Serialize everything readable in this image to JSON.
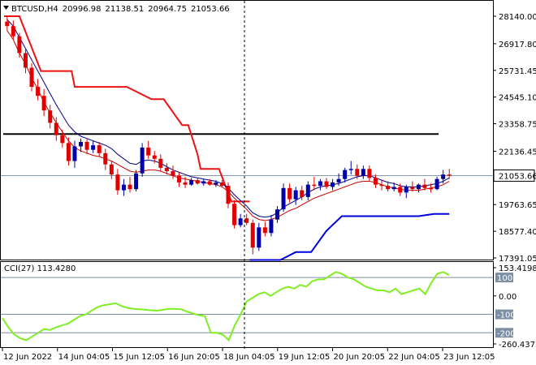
{
  "chart_data": [
    {
      "type": "candlestick",
      "symbol": "BTCUSD,H4",
      "ohlc_header": [
        "20996.98",
        "21138.51",
        "20964.75",
        "21053.66"
      ],
      "price_axis_labels": [
        "28140.00",
        "26917.80",
        "25731.45",
        "24545.10",
        "23358.75",
        "22136.45",
        "21053.66",
        "19763.65",
        "18577.40",
        "17391.05"
      ],
      "ylim": [
        17391.05,
        28140.0
      ],
      "current_price": 21053.66,
      "horizontal_line": 22900,
      "x_ticks": [
        "12 Jun 2022",
        "14 Jun 04:05",
        "15 Jun 12:05",
        "16 Jun 20:05",
        "18 Jun 04:05",
        "19 Jun 12:05",
        "20 Jun 20:05",
        "22 Jun 04:05",
        "23 Jun 12:05"
      ],
      "colors": {
        "bull": "#0000aa",
        "bear": "#e00000",
        "fast_ma": "#00008b",
        "slow_ma": "#cc0000",
        "trailing_stop_red": "#ee1111",
        "trailing_stop_blue": "#0000dd",
        "level_line": "#000000"
      },
      "candles": [
        [
          27900,
          28150,
          27500,
          27700
        ],
        [
          27700,
          27950,
          27100,
          27250
        ],
        [
          27250,
          27400,
          26300,
          26500
        ],
        [
          26500,
          26700,
          25600,
          25850
        ],
        [
          25850,
          26050,
          24800,
          25000
        ],
        [
          25000,
          25350,
          24400,
          24600
        ],
        [
          24600,
          24900,
          23700,
          23950
        ],
        [
          23950,
          24200,
          23150,
          23400
        ],
        [
          23400,
          23650,
          22600,
          22850
        ],
        [
          22850,
          23100,
          22300,
          22500
        ],
        [
          22500,
          22750,
          21500,
          21700
        ],
        [
          21700,
          22600,
          21400,
          22350
        ],
        [
          22350,
          22700,
          22100,
          22550
        ],
        [
          22550,
          22700,
          22000,
          22200
        ],
        [
          22200,
          22600,
          22050,
          22400
        ],
        [
          22400,
          22550,
          21900,
          22050
        ],
        [
          22050,
          22250,
          21300,
          21550
        ],
        [
          21550,
          21700,
          20900,
          21100
        ],
        [
          21100,
          21350,
          20200,
          20400
        ],
        [
          20400,
          20900,
          20150,
          20650
        ],
        [
          20650,
          21000,
          20300,
          20450
        ],
        [
          20450,
          21300,
          20350,
          21150
        ],
        [
          21150,
          22500,
          21000,
          22300
        ],
        [
          22300,
          22600,
          21800,
          21950
        ],
        [
          21950,
          22150,
          21600,
          21800
        ],
        [
          21800,
          22000,
          21250,
          21400
        ],
        [
          21400,
          21600,
          21100,
          21250
        ],
        [
          21250,
          21500,
          20900,
          21050
        ],
        [
          21050,
          21200,
          20550,
          20750
        ],
        [
          20750,
          21000,
          20500,
          20650
        ],
        [
          20650,
          20950,
          20600,
          20850
        ],
        [
          20850,
          20950,
          20650,
          20700
        ],
        [
          20700,
          20900,
          20600,
          20800
        ],
        [
          20800,
          20900,
          20600,
          20650
        ],
        [
          20650,
          20850,
          20550,
          20750
        ],
        [
          20750,
          20850,
          20550,
          20600
        ],
        [
          20600,
          20750,
          19600,
          19800
        ],
        [
          19800,
          19950,
          18700,
          18850
        ],
        [
          18850,
          19350,
          18750,
          19150
        ],
        [
          19150,
          19350,
          18850,
          18950
        ],
        [
          18950,
          19100,
          17550,
          17850
        ],
        [
          17850,
          18950,
          17700,
          18750
        ],
        [
          18750,
          19000,
          18350,
          18500
        ],
        [
          18500,
          19300,
          18350,
          19100
        ],
        [
          19100,
          19700,
          18950,
          19550
        ],
        [
          19550,
          20700,
          19450,
          20500
        ],
        [
          20500,
          20700,
          19850,
          20000
        ],
        [
          20000,
          20550,
          19750,
          20400
        ],
        [
          20400,
          20600,
          19950,
          20100
        ],
        [
          20100,
          20800,
          19950,
          20650
        ],
        [
          20650,
          21000,
          20400,
          20600
        ],
        [
          20600,
          20900,
          20400,
          20800
        ],
        [
          20800,
          20950,
          20450,
          20550
        ],
        [
          20550,
          20900,
          20400,
          20750
        ],
        [
          20750,
          21150,
          20600,
          20900
        ],
        [
          20900,
          21400,
          20750,
          21300
        ],
        [
          21300,
          21700,
          21100,
          21350
        ],
        [
          21350,
          21550,
          20900,
          21050
        ],
        [
          21050,
          21500,
          20900,
          21350
        ],
        [
          21350,
          21500,
          20800,
          20950
        ],
        [
          20950,
          21100,
          20500,
          20650
        ],
        [
          20650,
          20850,
          20400,
          20600
        ],
        [
          20600,
          20800,
          20350,
          20450
        ],
        [
          20450,
          20750,
          20350,
          20550
        ],
        [
          20550,
          20700,
          20150,
          20300
        ],
        [
          20300,
          20650,
          20050,
          20550
        ],
        [
          20550,
          20800,
          20350,
          20450
        ],
        [
          20450,
          20700,
          20300,
          20650
        ],
        [
          20650,
          20900,
          20400,
          20500
        ],
        [
          20500,
          20700,
          20300,
          20450
        ],
        [
          20450,
          21000,
          20400,
          20900
        ],
        [
          20900,
          21300,
          20700,
          21100
        ],
        [
          21100,
          21350,
          20900,
          21050
        ]
      ],
      "fast_ma": [
        28000,
        27700,
        27200,
        26700,
        26200,
        25700,
        25200,
        24700,
        24200,
        23750,
        23300,
        23000,
        22800,
        22700,
        22600,
        22500,
        22400,
        22250,
        22000,
        21800,
        21600,
        21550,
        21700,
        21750,
        21700,
        21600,
        21450,
        21300,
        21200,
        21100,
        21000,
        20950,
        20900,
        20850,
        20800,
        20700,
        20500,
        20200,
        19950,
        19700,
        19400,
        19250,
        19200,
        19250,
        19400,
        19650,
        19800,
        19950,
        20100,
        20300,
        20450,
        20550,
        20600,
        20650,
        20700,
        20800,
        20900,
        21000,
        21050,
        21050,
        20950,
        20850,
        20750,
        20700,
        20600,
        20550,
        20550,
        20550,
        20600,
        20650,
        20700,
        20800,
        20950
      ],
      "slow_ma": [
        27500,
        27100,
        26500,
        26000,
        25400,
        24900,
        24300,
        23850,
        23400,
        23000,
        22600,
        22300,
        22150,
        22050,
        21950,
        21900,
        21800,
        21700,
        21550,
        21400,
        21250,
        21200,
        21250,
        21300,
        21300,
        21250,
        21150,
        21050,
        20950,
        20900,
        20850,
        20800,
        20750,
        20700,
        20650,
        20550,
        20350,
        20050,
        19800,
        19550,
        19250,
        19100,
        19050,
        19100,
        19200,
        19350,
        19500,
        19600,
        19750,
        19900,
        20050,
        20150,
        20250,
        20350,
        20450,
        20550,
        20650,
        20750,
        20800,
        20800,
        20750,
        20650,
        20550,
        20500,
        20450,
        20400,
        20400,
        20400,
        20450,
        20500,
        20550,
        20650,
        20800
      ],
      "trailing_stop_red": [
        [
          0,
          28140
        ],
        [
          5,
          28140
        ],
        [
          12,
          25700
        ],
        [
          22,
          25700
        ],
        [
          23,
          25000
        ],
        [
          40,
          25000
        ],
        [
          48,
          24450
        ],
        [
          52,
          24450
        ],
        [
          58,
          23300
        ],
        [
          60,
          23300
        ],
        [
          63,
          22000
        ],
        [
          64,
          21350
        ],
        [
          65,
          21350
        ],
        [
          70,
          21350
        ],
        [
          74,
          19900
        ],
        [
          80,
          19900
        ]
      ],
      "trailing_stop_blue": [
        [
          80,
          17300
        ],
        [
          90,
          17300
        ],
        [
          95,
          17650
        ],
        [
          100,
          17650
        ],
        [
          105,
          18600
        ],
        [
          110,
          19250
        ],
        [
          120,
          19250
        ],
        [
          135,
          19250
        ],
        [
          140,
          19350
        ],
        [
          145,
          19350
        ]
      ]
    },
    {
      "type": "line",
      "label": "CCI(27) 113.4280",
      "axis_labels": [
        "153.4198",
        "100",
        "0.00",
        "-100",
        "-200",
        "-260.4372"
      ],
      "ylim": [
        -260.4372,
        153.4198
      ],
      "levels": [
        100,
        -100,
        -200
      ],
      "color": "#7fee22",
      "values": [
        -120,
        -170,
        -210,
        -230,
        -240,
        -220,
        -200,
        -180,
        -185,
        -170,
        -160,
        -150,
        -130,
        -110,
        -100,
        -80,
        -60,
        -50,
        -45,
        -40,
        -55,
        -65,
        -70,
        -72,
        -75,
        -78,
        -80,
        -75,
        -70,
        -70,
        -72,
        -85,
        -95,
        -105,
        -110,
        -200,
        -200,
        -210,
        -240,
        -160,
        -100,
        -30,
        -10,
        10,
        20,
        0,
        20,
        40,
        50,
        40,
        60,
        50,
        80,
        90,
        90,
        110,
        130,
        120,
        100,
        90,
        70,
        50,
        40,
        30,
        30,
        20,
        40,
        10,
        20,
        30,
        40,
        10,
        70,
        120,
        130,
        113
      ]
    }
  ]
}
